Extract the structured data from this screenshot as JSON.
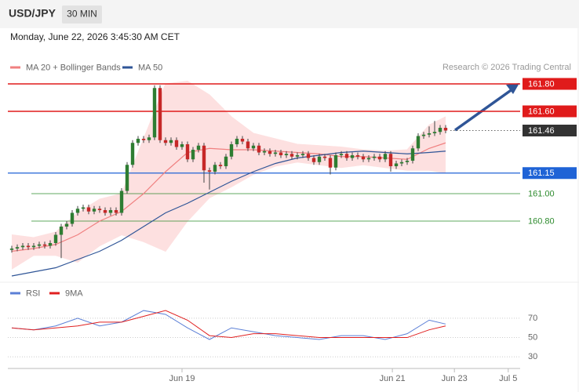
{
  "header": {
    "symbol": "USD/JPY",
    "interval": "30 MIN"
  },
  "chart_data": [
    {
      "type": "candlestick",
      "subtitle": "Monday, June 22, 2026 3:45:30 AM CET",
      "credit": "Research © 2026 Trading Central",
      "up_color": "#2e7d32",
      "down_color": "#c62828",
      "xlim": [
        -1,
        92.5
      ],
      "ylim": [
        160.38,
        161.86
      ],
      "open": [
        160.59,
        160.6,
        160.61,
        160.62,
        160.61,
        160.62,
        160.63,
        160.62,
        160.64,
        160.7,
        160.76,
        160.78,
        160.86,
        160.89,
        160.9,
        160.87,
        160.89,
        160.88,
        160.86,
        160.88,
        160.86,
        161.02,
        161.21,
        161.37,
        161.4,
        161.39,
        161.41,
        161.77,
        161.39,
        161.37,
        161.39,
        161.34,
        161.36,
        161.25,
        161.32,
        161.35,
        161.17,
        161.16,
        161.21,
        161.2,
        161.27,
        161.36,
        161.4,
        161.38,
        161.33,
        161.35,
        161.3,
        161.31,
        161.29,
        161.3,
        161.28,
        161.29,
        161.27,
        161.28,
        161.29,
        161.26,
        161.23,
        161.27,
        161.26,
        161.19,
        161.28,
        161.29,
        161.26,
        161.28,
        161.27,
        161.25,
        161.26,
        161.27,
        161.25,
        161.29,
        161.2,
        161.22,
        161.23,
        161.24,
        161.33,
        161.42,
        161.43,
        161.44,
        161.45,
        161.48
      ],
      "high": [
        160.62,
        160.63,
        160.64,
        160.64,
        160.64,
        160.65,
        160.65,
        160.66,
        160.72,
        160.78,
        160.8,
        160.88,
        160.91,
        160.92,
        160.92,
        160.91,
        160.91,
        160.9,
        160.9,
        160.9,
        161.04,
        161.23,
        161.39,
        161.42,
        161.42,
        161.43,
        161.79,
        161.79,
        161.41,
        161.41,
        161.41,
        161.38,
        161.38,
        161.34,
        161.37,
        161.37,
        161.19,
        161.23,
        161.23,
        161.29,
        161.38,
        161.42,
        161.42,
        161.4,
        161.37,
        161.37,
        161.33,
        161.33,
        161.32,
        161.32,
        161.31,
        161.31,
        161.3,
        161.31,
        161.31,
        161.28,
        161.29,
        161.29,
        161.28,
        161.3,
        161.31,
        161.31,
        161.3,
        161.3,
        161.29,
        161.28,
        161.29,
        161.29,
        161.31,
        161.31,
        161.24,
        161.25,
        161.26,
        161.35,
        161.44,
        161.45,
        161.49,
        161.53,
        161.5,
        161.5
      ],
      "low": [
        160.57,
        160.58,
        160.59,
        160.59,
        160.59,
        160.6,
        160.6,
        160.6,
        160.62,
        160.53,
        160.74,
        160.76,
        160.84,
        160.87,
        160.85,
        160.85,
        160.86,
        160.84,
        160.84,
        160.84,
        160.84,
        161.0,
        161.19,
        161.35,
        161.37,
        161.37,
        161.39,
        161.37,
        161.35,
        161.35,
        161.32,
        161.32,
        161.23,
        161.23,
        161.3,
        161.08,
        161.03,
        161.14,
        161.18,
        161.18,
        161.25,
        161.34,
        161.36,
        161.31,
        161.31,
        161.28,
        161.28,
        161.27,
        161.27,
        161.26,
        161.26,
        161.25,
        161.25,
        161.26,
        161.24,
        161.21,
        161.21,
        161.24,
        161.14,
        161.17,
        161.26,
        161.24,
        161.24,
        161.25,
        161.23,
        161.23,
        161.24,
        161.23,
        161.23,
        161.16,
        161.18,
        161.2,
        161.21,
        161.22,
        161.31,
        161.4,
        161.41,
        161.42,
        161.43,
        161.44
      ],
      "close": [
        160.6,
        160.61,
        160.62,
        160.61,
        160.62,
        160.63,
        160.62,
        160.64,
        160.7,
        160.76,
        160.78,
        160.86,
        160.89,
        160.9,
        160.87,
        160.89,
        160.88,
        160.86,
        160.88,
        160.86,
        161.02,
        161.21,
        161.37,
        161.4,
        161.39,
        161.41,
        161.77,
        161.39,
        161.37,
        161.39,
        161.34,
        161.36,
        161.25,
        161.32,
        161.35,
        161.17,
        161.16,
        161.21,
        161.2,
        161.27,
        161.36,
        161.4,
        161.38,
        161.33,
        161.35,
        161.3,
        161.31,
        161.29,
        161.3,
        161.28,
        161.29,
        161.27,
        161.28,
        161.29,
        161.26,
        161.23,
        161.27,
        161.26,
        161.19,
        161.28,
        161.29,
        161.26,
        161.28,
        161.27,
        161.25,
        161.26,
        161.27,
        161.25,
        161.29,
        161.2,
        161.22,
        161.23,
        161.24,
        161.33,
        161.42,
        161.43,
        161.44,
        161.45,
        161.48,
        161.46
      ],
      "series": [
        {
          "name": "MA 20 + Bollinger Bands",
          "color": "#f08080",
          "band_color": "#fde0e0",
          "x": [
            0,
            4,
            8,
            12,
            16,
            20,
            24,
            28,
            32,
            36,
            40,
            44,
            48,
            52,
            56,
            60,
            64,
            68,
            72,
            76,
            79
          ],
          "values": [
            160.58,
            160.6,
            160.63,
            160.7,
            160.8,
            160.87,
            161.0,
            161.16,
            161.3,
            161.33,
            161.32,
            161.32,
            161.31,
            161.3,
            161.29,
            161.27,
            161.27,
            161.26,
            161.25,
            161.33,
            161.37
          ],
          "upper": [
            160.7,
            160.68,
            160.72,
            160.86,
            160.96,
            161.0,
            161.4,
            161.8,
            161.82,
            161.72,
            161.56,
            161.44,
            161.4,
            161.36,
            161.35,
            161.34,
            161.32,
            161.31,
            161.32,
            161.5,
            161.56
          ],
          "lower": [
            160.45,
            160.55,
            160.55,
            160.5,
            160.62,
            160.7,
            160.65,
            160.58,
            160.8,
            160.97,
            161.05,
            161.14,
            161.2,
            161.23,
            161.21,
            161.19,
            161.21,
            161.19,
            161.17,
            161.17,
            161.15
          ]
        },
        {
          "name": "MA 50",
          "color": "#2f5597",
          "x": [
            0,
            4,
            8,
            12,
            16,
            20,
            24,
            28,
            32,
            36,
            40,
            44,
            48,
            52,
            56,
            60,
            64,
            68,
            72,
            76,
            79
          ],
          "values": [
            160.4,
            160.43,
            160.46,
            160.52,
            160.58,
            160.66,
            160.76,
            160.86,
            160.93,
            161.01,
            161.09,
            161.16,
            161.22,
            161.26,
            161.28,
            161.3,
            161.31,
            161.3,
            161.29,
            161.3,
            161.31
          ]
        }
      ],
      "levels": [
        {
          "value": 161.8,
          "label": "161.80",
          "color": "#e01b1b",
          "style": "box"
        },
        {
          "value": 161.6,
          "label": "161.60",
          "color": "#e01b1b",
          "style": "box"
        },
        {
          "value": 161.46,
          "label": "161.46",
          "color": "#333333",
          "style": "current"
        },
        {
          "value": 161.15,
          "label": "161.15",
          "color": "#1f63d6",
          "style": "box"
        },
        {
          "value": 161,
          "label": "161.00",
          "color": "#2e8b2e",
          "style": "text"
        },
        {
          "value": 160.8,
          "label": "160.80",
          "color": "#2e8b2e",
          "style": "text"
        }
      ]
    },
    {
      "type": "line",
      "xlim": [
        -1,
        92.5
      ],
      "ylim": [
        22,
        87
      ],
      "yticks": [
        70,
        50,
        30
      ],
      "xticks": [
        {
          "value": 31,
          "label": "Jun 19"
        },
        {
          "value": 69.3,
          "label": "Jun 21"
        },
        {
          "value": 80.6,
          "label": "Jun 23"
        },
        {
          "value": 90.4,
          "label": "Jul 5"
        }
      ],
      "series": [
        {
          "name": "RSI",
          "color": "#5b7fd6",
          "x": [
            0,
            4,
            8,
            12,
            16,
            20,
            24,
            28,
            32,
            36,
            40,
            44,
            48,
            52,
            56,
            60,
            64,
            68,
            72,
            76,
            79
          ],
          "values": [
            60,
            58,
            62,
            70,
            62,
            66,
            78,
            74,
            60,
            48,
            60,
            56,
            52,
            50,
            48,
            52,
            52,
            48,
            54,
            68,
            64
          ]
        },
        {
          "name": "9MA",
          "color": "#e02020",
          "x": [
            0,
            4,
            8,
            12,
            16,
            20,
            24,
            28,
            32,
            36,
            40,
            44,
            48,
            52,
            56,
            60,
            64,
            68,
            72,
            76,
            79
          ],
          "values": [
            60,
            58,
            60,
            62,
            66,
            66,
            72,
            78,
            68,
            52,
            50,
            54,
            54,
            52,
            50,
            50,
            50,
            50,
            50,
            58,
            62
          ]
        }
      ]
    }
  ]
}
